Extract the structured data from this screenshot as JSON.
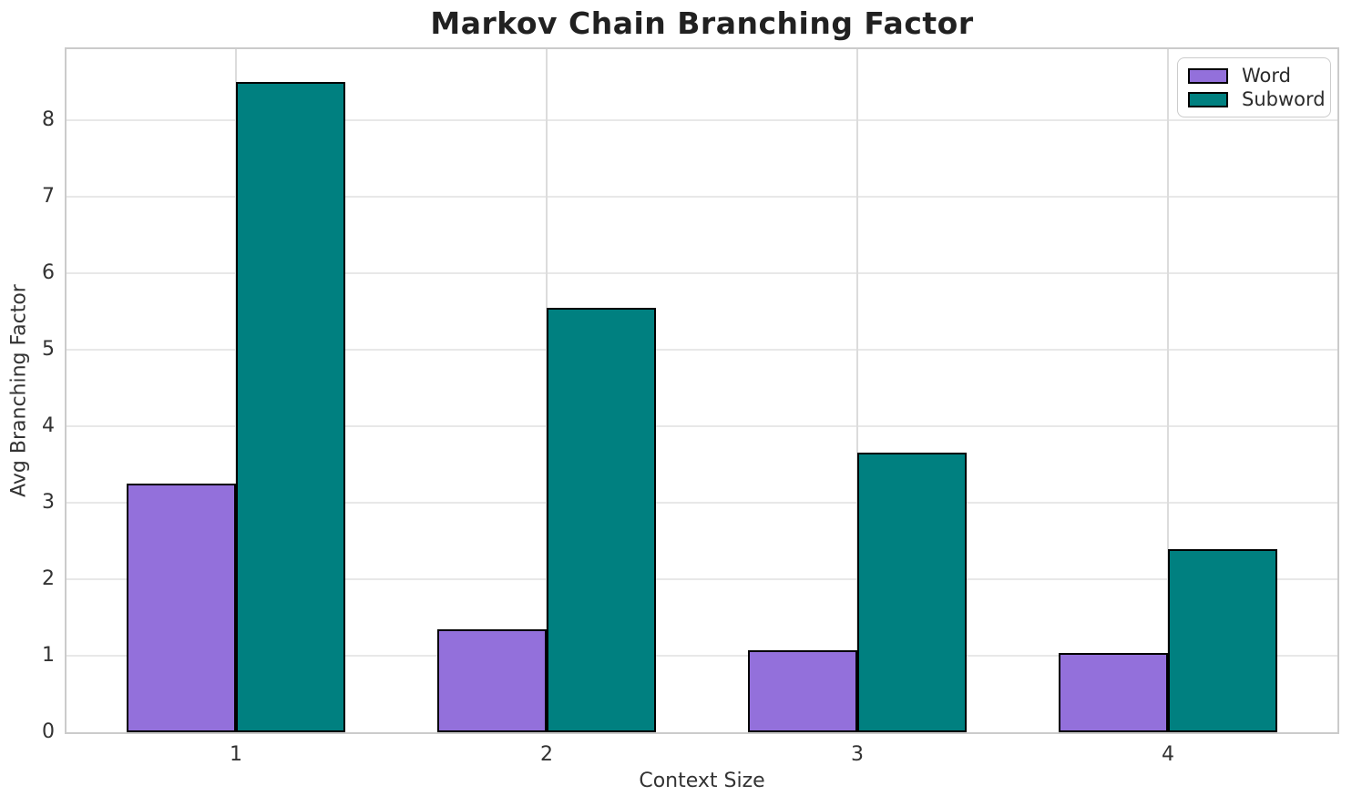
{
  "chart_data": {
    "type": "bar",
    "title": "Markov Chain Branching Factor",
    "xlabel": "Context Size",
    "ylabel": "Avg Branching Factor",
    "categories": [
      "1",
      "2",
      "3",
      "4"
    ],
    "series": [
      {
        "name": "Word",
        "color": "#9370DB",
        "values": [
          3.25,
          1.34,
          1.07,
          1.03
        ]
      },
      {
        "name": "Subword",
        "color": "#008080",
        "values": [
          8.5,
          5.55,
          3.65,
          2.39
        ]
      }
    ],
    "ylim": [
      0,
      8.93
    ],
    "yticks": [
      0,
      1,
      2,
      3,
      4,
      5,
      6,
      7,
      8
    ],
    "grid": true,
    "grid_axes": "both",
    "legend_position": "upper right",
    "bar_edge_color": "#000000",
    "plot_background": "#ffffff"
  }
}
